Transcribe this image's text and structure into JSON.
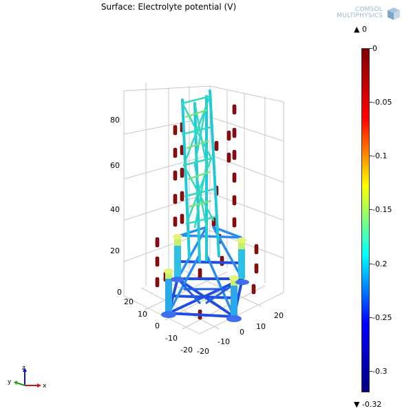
{
  "plot": {
    "title": "Surface: Electrolyte potential (V)",
    "logo": {
      "line1": "COMSOL",
      "line2": "MULTIPHYSICS"
    },
    "colorbar": {
      "max_label": "▲ 0",
      "min_label": "▼ -0.32",
      "ticks": [
        "0",
        "-0.05",
        "-0.1",
        "-0.15",
        "-0.2",
        "-0.25",
        "-0.3"
      ],
      "tick_values": [
        0,
        -0.05,
        -0.1,
        -0.15,
        -0.2,
        -0.25,
        -0.3
      ],
      "range": [
        -0.32,
        0
      ],
      "colors": [
        "#7f0000",
        "#ff0000",
        "#ffff00",
        "#00ffff",
        "#0000ff",
        "#00007f"
      ]
    },
    "z_axis": {
      "ticks": [
        "80",
        "60",
        "40",
        "20",
        "0"
      ]
    },
    "x_axis": {
      "ticks": [
        "20",
        "10",
        "0",
        "-10",
        "-20"
      ]
    },
    "y_axis": {
      "ticks": [
        "20",
        "10",
        "0",
        "-10",
        "-20"
      ]
    },
    "triad": {
      "x": "x",
      "y": "y",
      "z": "z"
    }
  }
}
